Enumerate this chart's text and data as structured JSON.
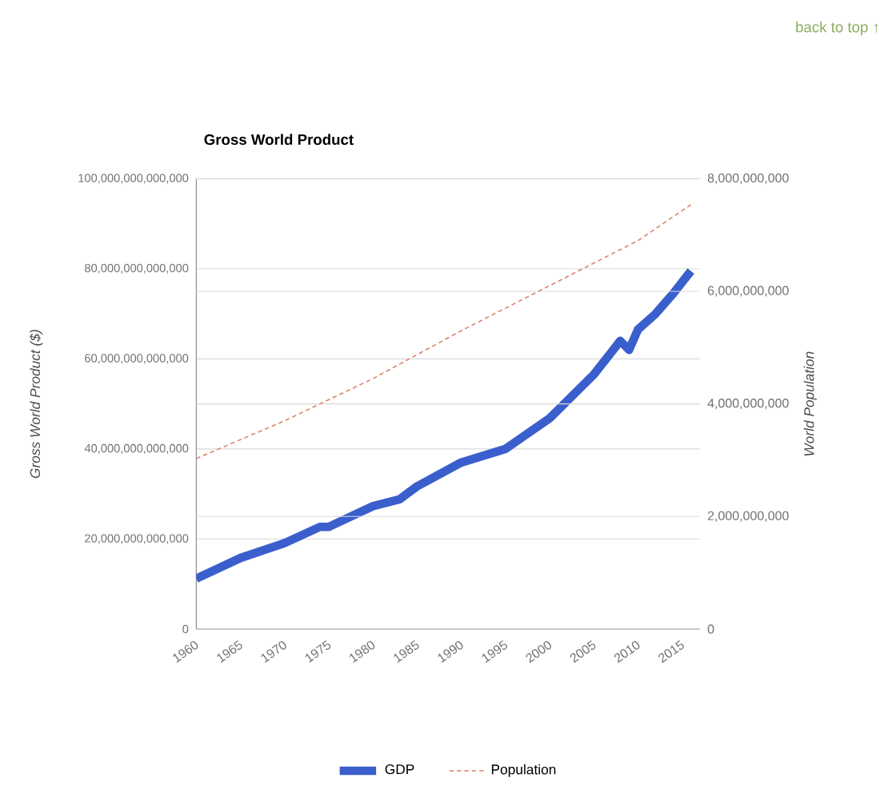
{
  "chart_data": {
    "type": "line",
    "title": "Gross World Product",
    "ylabel": "Gross World Product ($)",
    "y2label": "World Population",
    "annotations": [
      "back to top ↑"
    ],
    "x": [
      1960,
      1965,
      1970,
      1974,
      1975,
      1980,
      1983,
      1985,
      1990,
      1995,
      2000,
      2005,
      2008,
      2009,
      2010,
      2012,
      2014,
      2016
    ],
    "series": [
      {
        "name": "GDP",
        "color": "#3a5fcd",
        "values": [
          11200000000000,
          15800000000000,
          19100000000000,
          22700000000000,
          22700000000000,
          27300000000000,
          28800000000000,
          31700000000000,
          37000000000000,
          40000000000000,
          46800000000000,
          56500000000000,
          64000000000000,
          62000000000000,
          66500000000000,
          70000000000000,
          74500000000000,
          79500000000000
        ]
      },
      {
        "name": "Population",
        "color": "#d9826b",
        "axis": "y2",
        "line_style": "dashed",
        "x": [
          1960,
          1970,
          1980,
          1990,
          2000,
          2010,
          2016
        ],
        "values": [
          3030000000,
          3700000000,
          4450000000,
          5300000000,
          6100000000,
          6900000000,
          7540000000
        ]
      }
    ],
    "xlim": [
      1960,
      2017
    ],
    "xticks": [
      1960,
      1965,
      1970,
      1975,
      1980,
      1985,
      1990,
      1995,
      2000,
      2005,
      2010,
      2015
    ],
    "ylim": [
      0,
      100000000000000
    ],
    "yticks": [
      0,
      {
        "value": 20000000000000,
        "label": "20,000,000,000,000"
      },
      {
        "value": 40000000000000,
        "label": "40,000,000,000,000"
      },
      {
        "value": 60000000000000,
        "label": "60,000,000,000,000"
      },
      {
        "value": 80000000000000,
        "label": "80,000,000,000,000"
      },
      {
        "value": 100000000000000,
        "label": "100,000,000,000,000"
      }
    ],
    "y2lim": [
      0,
      8000000000
    ],
    "y2ticks": [
      0,
      {
        "value": 2000000000,
        "label": "2,000,000,000"
      },
      {
        "value": 4000000000,
        "label": "4,000,000,000"
      },
      {
        "value": 6000000000,
        "label": "6,000,000,000"
      },
      {
        "value": 8000000000,
        "label": "8,000,000,000"
      }
    ],
    "grid": "y",
    "legend": "bottom",
    "marker": "none"
  }
}
